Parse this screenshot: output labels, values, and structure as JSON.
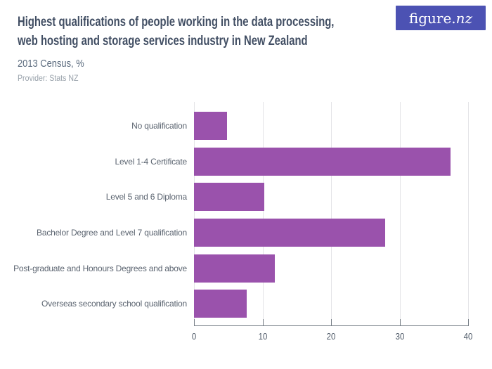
{
  "header": {
    "title_line1": "Highest qualifications of people working in the data processing,",
    "title_line2": "web hosting and storage services industry in New Zealand",
    "subtitle": "2013 Census, %",
    "provider": "Provider: Stats NZ"
  },
  "logo": {
    "brand_prefix": "figure.",
    "brand_suffix": "nz",
    "bg_color": "#4c52b3"
  },
  "chart_data": {
    "type": "bar",
    "orientation": "horizontal",
    "title": "Highest qualifications of people working in the data processing, web hosting and storage services industry in New Zealand",
    "subtitle": "2013 Census, %",
    "unit": "%",
    "categories": [
      "No qualification",
      "Level 1-4 Certificate",
      "Level 5 and 6 Diploma",
      "Bachelor Degree and Level 7 qualification",
      "Post-graduate and Honours Degrees and above",
      "Overseas secondary school qualification"
    ],
    "values": [
      4.8,
      37.4,
      10.3,
      27.9,
      11.8,
      7.7
    ],
    "xlim": [
      0,
      40
    ],
    "xticks": [
      0,
      10,
      20,
      30,
      40
    ],
    "grid": "vertical",
    "legend": "none",
    "bar_color": "#9a52ac"
  }
}
